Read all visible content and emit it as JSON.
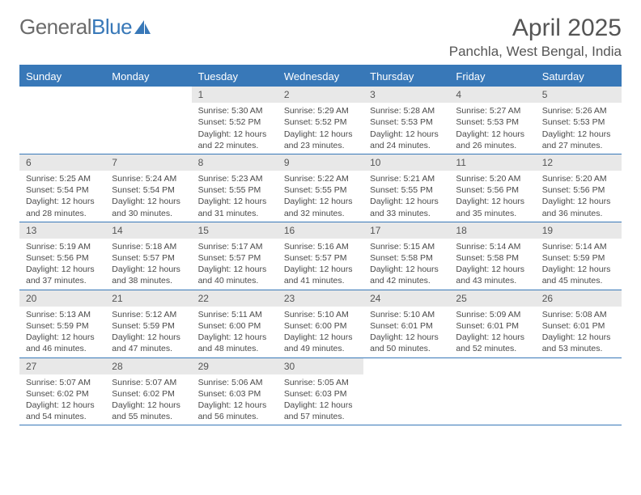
{
  "logo": {
    "general": "General",
    "blue": "Blue"
  },
  "title": "April 2025",
  "location": "Panchla, West Bengal, India",
  "colors": {
    "brand_blue": "#3878b8",
    "header_gray": "#e8e8e8",
    "text_primary": "#555555",
    "text_body": "#4a4a4a",
    "background": "#ffffff"
  },
  "day_headers": [
    "Sunday",
    "Monday",
    "Tuesday",
    "Wednesday",
    "Thursday",
    "Friday",
    "Saturday"
  ],
  "weeks": [
    [
      null,
      null,
      {
        "n": "1",
        "sr": "Sunrise: 5:30 AM",
        "ss": "Sunset: 5:52 PM",
        "dl1": "Daylight: 12 hours",
        "dl2": "and 22 minutes."
      },
      {
        "n": "2",
        "sr": "Sunrise: 5:29 AM",
        "ss": "Sunset: 5:52 PM",
        "dl1": "Daylight: 12 hours",
        "dl2": "and 23 minutes."
      },
      {
        "n": "3",
        "sr": "Sunrise: 5:28 AM",
        "ss": "Sunset: 5:53 PM",
        "dl1": "Daylight: 12 hours",
        "dl2": "and 24 minutes."
      },
      {
        "n": "4",
        "sr": "Sunrise: 5:27 AM",
        "ss": "Sunset: 5:53 PM",
        "dl1": "Daylight: 12 hours",
        "dl2": "and 26 minutes."
      },
      {
        "n": "5",
        "sr": "Sunrise: 5:26 AM",
        "ss": "Sunset: 5:53 PM",
        "dl1": "Daylight: 12 hours",
        "dl2": "and 27 minutes."
      }
    ],
    [
      {
        "n": "6",
        "sr": "Sunrise: 5:25 AM",
        "ss": "Sunset: 5:54 PM",
        "dl1": "Daylight: 12 hours",
        "dl2": "and 28 minutes."
      },
      {
        "n": "7",
        "sr": "Sunrise: 5:24 AM",
        "ss": "Sunset: 5:54 PM",
        "dl1": "Daylight: 12 hours",
        "dl2": "and 30 minutes."
      },
      {
        "n": "8",
        "sr": "Sunrise: 5:23 AM",
        "ss": "Sunset: 5:55 PM",
        "dl1": "Daylight: 12 hours",
        "dl2": "and 31 minutes."
      },
      {
        "n": "9",
        "sr": "Sunrise: 5:22 AM",
        "ss": "Sunset: 5:55 PM",
        "dl1": "Daylight: 12 hours",
        "dl2": "and 32 minutes."
      },
      {
        "n": "10",
        "sr": "Sunrise: 5:21 AM",
        "ss": "Sunset: 5:55 PM",
        "dl1": "Daylight: 12 hours",
        "dl2": "and 33 minutes."
      },
      {
        "n": "11",
        "sr": "Sunrise: 5:20 AM",
        "ss": "Sunset: 5:56 PM",
        "dl1": "Daylight: 12 hours",
        "dl2": "and 35 minutes."
      },
      {
        "n": "12",
        "sr": "Sunrise: 5:20 AM",
        "ss": "Sunset: 5:56 PM",
        "dl1": "Daylight: 12 hours",
        "dl2": "and 36 minutes."
      }
    ],
    [
      {
        "n": "13",
        "sr": "Sunrise: 5:19 AM",
        "ss": "Sunset: 5:56 PM",
        "dl1": "Daylight: 12 hours",
        "dl2": "and 37 minutes."
      },
      {
        "n": "14",
        "sr": "Sunrise: 5:18 AM",
        "ss": "Sunset: 5:57 PM",
        "dl1": "Daylight: 12 hours",
        "dl2": "and 38 minutes."
      },
      {
        "n": "15",
        "sr": "Sunrise: 5:17 AM",
        "ss": "Sunset: 5:57 PM",
        "dl1": "Daylight: 12 hours",
        "dl2": "and 40 minutes."
      },
      {
        "n": "16",
        "sr": "Sunrise: 5:16 AM",
        "ss": "Sunset: 5:57 PM",
        "dl1": "Daylight: 12 hours",
        "dl2": "and 41 minutes."
      },
      {
        "n": "17",
        "sr": "Sunrise: 5:15 AM",
        "ss": "Sunset: 5:58 PM",
        "dl1": "Daylight: 12 hours",
        "dl2": "and 42 minutes."
      },
      {
        "n": "18",
        "sr": "Sunrise: 5:14 AM",
        "ss": "Sunset: 5:58 PM",
        "dl1": "Daylight: 12 hours",
        "dl2": "and 43 minutes."
      },
      {
        "n": "19",
        "sr": "Sunrise: 5:14 AM",
        "ss": "Sunset: 5:59 PM",
        "dl1": "Daylight: 12 hours",
        "dl2": "and 45 minutes."
      }
    ],
    [
      {
        "n": "20",
        "sr": "Sunrise: 5:13 AM",
        "ss": "Sunset: 5:59 PM",
        "dl1": "Daylight: 12 hours",
        "dl2": "and 46 minutes."
      },
      {
        "n": "21",
        "sr": "Sunrise: 5:12 AM",
        "ss": "Sunset: 5:59 PM",
        "dl1": "Daylight: 12 hours",
        "dl2": "and 47 minutes."
      },
      {
        "n": "22",
        "sr": "Sunrise: 5:11 AM",
        "ss": "Sunset: 6:00 PM",
        "dl1": "Daylight: 12 hours",
        "dl2": "and 48 minutes."
      },
      {
        "n": "23",
        "sr": "Sunrise: 5:10 AM",
        "ss": "Sunset: 6:00 PM",
        "dl1": "Daylight: 12 hours",
        "dl2": "and 49 minutes."
      },
      {
        "n": "24",
        "sr": "Sunrise: 5:10 AM",
        "ss": "Sunset: 6:01 PM",
        "dl1": "Daylight: 12 hours",
        "dl2": "and 50 minutes."
      },
      {
        "n": "25",
        "sr": "Sunrise: 5:09 AM",
        "ss": "Sunset: 6:01 PM",
        "dl1": "Daylight: 12 hours",
        "dl2": "and 52 minutes."
      },
      {
        "n": "26",
        "sr": "Sunrise: 5:08 AM",
        "ss": "Sunset: 6:01 PM",
        "dl1": "Daylight: 12 hours",
        "dl2": "and 53 minutes."
      }
    ],
    [
      {
        "n": "27",
        "sr": "Sunrise: 5:07 AM",
        "ss": "Sunset: 6:02 PM",
        "dl1": "Daylight: 12 hours",
        "dl2": "and 54 minutes."
      },
      {
        "n": "28",
        "sr": "Sunrise: 5:07 AM",
        "ss": "Sunset: 6:02 PM",
        "dl1": "Daylight: 12 hours",
        "dl2": "and 55 minutes."
      },
      {
        "n": "29",
        "sr": "Sunrise: 5:06 AM",
        "ss": "Sunset: 6:03 PM",
        "dl1": "Daylight: 12 hours",
        "dl2": "and 56 minutes."
      },
      {
        "n": "30",
        "sr": "Sunrise: 5:05 AM",
        "ss": "Sunset: 6:03 PM",
        "dl1": "Daylight: 12 hours",
        "dl2": "and 57 minutes."
      },
      null,
      null,
      null
    ]
  ]
}
